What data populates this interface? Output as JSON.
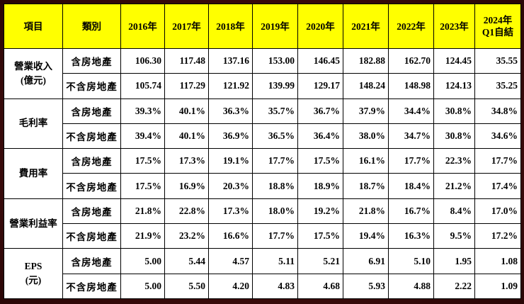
{
  "table": {
    "header": [
      "項目",
      "類別",
      "2016年",
      "2017年",
      "2018年",
      "2019年",
      "2020年",
      "2021年",
      "2022年",
      "2023年",
      [
        "2024年",
        "Q1自結"
      ]
    ],
    "groups": [
      {
        "label": [
          "營業收入",
          "(億元)"
        ],
        "rows": [
          {
            "category": "含房地產",
            "values": [
              "106.30",
              "117.48",
              "137.16",
              "153.00",
              "146.45",
              "182.88",
              "162.70",
              "124.45",
              "35.55"
            ]
          },
          {
            "category": "不含房地產",
            "values": [
              "105.74",
              "117.29",
              "121.92",
              "139.99",
              "129.17",
              "148.24",
              "148.98",
              "124.13",
              "35.25"
            ]
          }
        ]
      },
      {
        "label": [
          "毛利率"
        ],
        "rows": [
          {
            "category": "含房地產",
            "values": [
              "39.3%",
              "40.1%",
              "36.3%",
              "35.7%",
              "36.7%",
              "37.9%",
              "34.4%",
              "30.8%",
              "34.8%"
            ]
          },
          {
            "category": "不含房地產",
            "values": [
              "39.4%",
              "40.1%",
              "36.9%",
              "36.5%",
              "36.4%",
              "38.0%",
              "34.7%",
              "30.8%",
              "34.6%"
            ]
          }
        ]
      },
      {
        "label": [
          "費用率"
        ],
        "rows": [
          {
            "category": "含房地產",
            "values": [
              "17.5%",
              "17.3%",
              "19.1%",
              "17.7%",
              "17.5%",
              "16.1%",
              "17.7%",
              "22.3%",
              "17.7%"
            ]
          },
          {
            "category": "不含房地產",
            "values": [
              "17.5%",
              "16.9%",
              "20.3%",
              "18.8%",
              "18.9%",
              "18.7%",
              "18.4%",
              "21.2%",
              "17.4%"
            ]
          }
        ]
      },
      {
        "label": [
          "營業利益率"
        ],
        "rows": [
          {
            "category": "含房地產",
            "values": [
              "21.8%",
              "22.8%",
              "17.3%",
              "18.0%",
              "19.2%",
              "21.8%",
              "16.7%",
              "8.4%",
              "17.0%"
            ]
          },
          {
            "category": "不含房地產",
            "values": [
              "21.9%",
              "23.2%",
              "16.6%",
              "17.7%",
              "17.5%",
              "19.4%",
              "16.3%",
              "9.5%",
              "17.2%"
            ]
          }
        ]
      },
      {
        "label": [
          "EPS",
          "(元)"
        ],
        "rows": [
          {
            "category": "含房地產",
            "values": [
              "5.00",
              "5.44",
              "4.57",
              "5.11",
              "5.21",
              "6.91",
              "5.10",
              "1.95",
              "1.08"
            ]
          },
          {
            "category": "不含房地產",
            "values": [
              "5.00",
              "5.50",
              "4.20",
              "4.83",
              "4.68",
              "5.93",
              "4.88",
              "2.22",
              "1.09"
            ]
          }
        ]
      }
    ]
  }
}
